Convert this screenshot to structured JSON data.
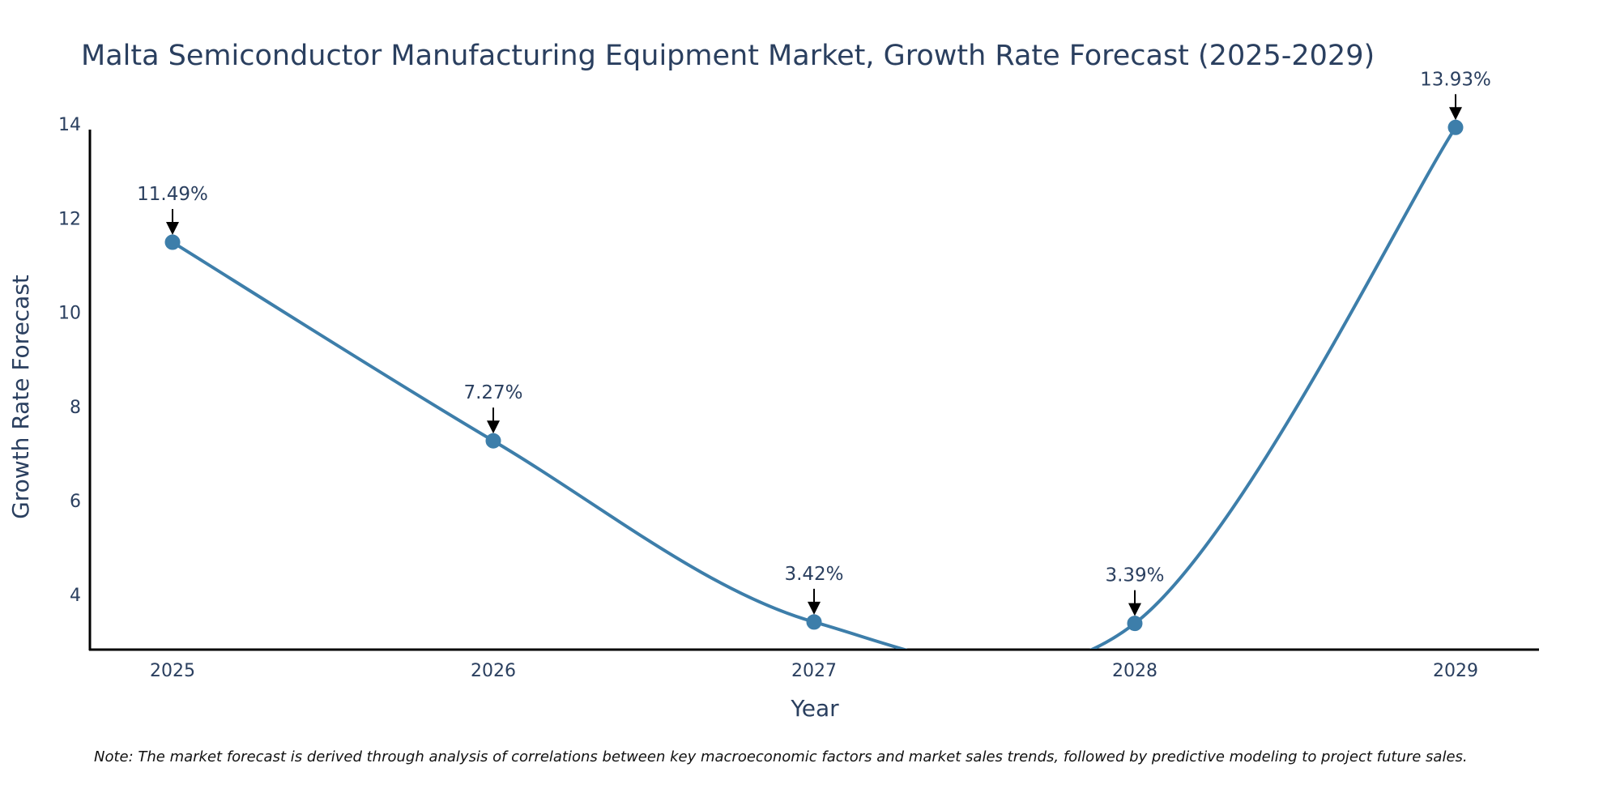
{
  "chart_data": {
    "type": "line",
    "title": "Malta Semiconductor Manufacturing Equipment Market, Growth Rate Forecast (2025-2029)",
    "xlabel": "Year",
    "ylabel": "Growth Rate Forecast",
    "categories": [
      "2025",
      "2026",
      "2027",
      "2028",
      "2029"
    ],
    "series": [
      {
        "name": "Growth Rate Forecast",
        "values": [
          11.49,
          7.27,
          3.42,
          3.39,
          13.93
        ]
      }
    ],
    "annotations": [
      "11.49%",
      "7.27%",
      "3.42%",
      "3.39%",
      "13.93%"
    ],
    "y_ticks": [
      "4",
      "6",
      "8",
      "10",
      "12",
      "14"
    ],
    "ylim": [
      2.85,
      14.4
    ],
    "line_color": "#3d7eaa",
    "marker_color": "#3d7eaa",
    "grid": false,
    "note": "Note: The market forecast is derived through analysis of correlations between key macroeconomic factors and market sales trends, followed by predictive modeling to project future sales."
  }
}
